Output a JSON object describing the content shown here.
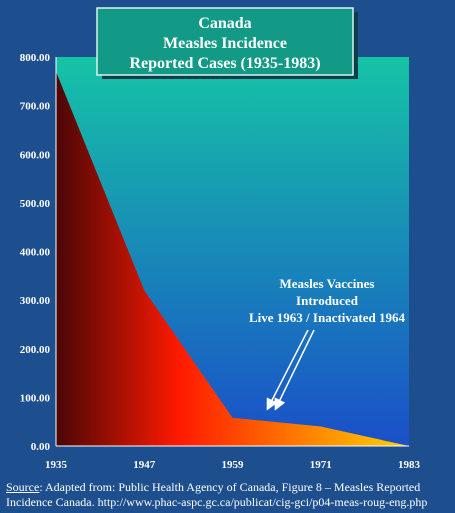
{
  "chart_data": {
    "type": "area",
    "title": [
      "Canada",
      "Measles Incidence",
      "Reported Cases (1935-1983)"
    ],
    "xlabel": "",
    "ylabel": "",
    "x": [
      1935,
      1947,
      1959,
      1971,
      1983
    ],
    "values": [
      770,
      320,
      58,
      40,
      0
    ],
    "ylim": [
      0,
      800
    ],
    "yticks": [
      "0.00",
      "100.00",
      "200.00",
      "300.00",
      "400.00",
      "500.00",
      "600.00",
      "700.00",
      "800.00"
    ],
    "xticks": [
      "1935",
      "1947",
      "1959",
      "1971",
      "1983"
    ],
    "annotation": [
      "Measles Vaccines",
      "Introduced",
      "Live 1963 / Inactivated 1964"
    ],
    "grid": false,
    "legend": "none"
  },
  "source": {
    "label": "Source",
    "text": ": Adapted from: Public Health Agency of Canada, Figure 8 – Measles Reported Incidence Canada. http://www.phac-aspc.gc.ca/publicat/cig-gci/p04-meas-roug-eng.php"
  },
  "colors": {
    "background_top": "#16c3a6",
    "background_bottom": "#1a4fc9",
    "title_box": "#129a86",
    "area_start": "#4a0606",
    "area_mid": "#ff1a00",
    "area_end": "#ffd400"
  }
}
